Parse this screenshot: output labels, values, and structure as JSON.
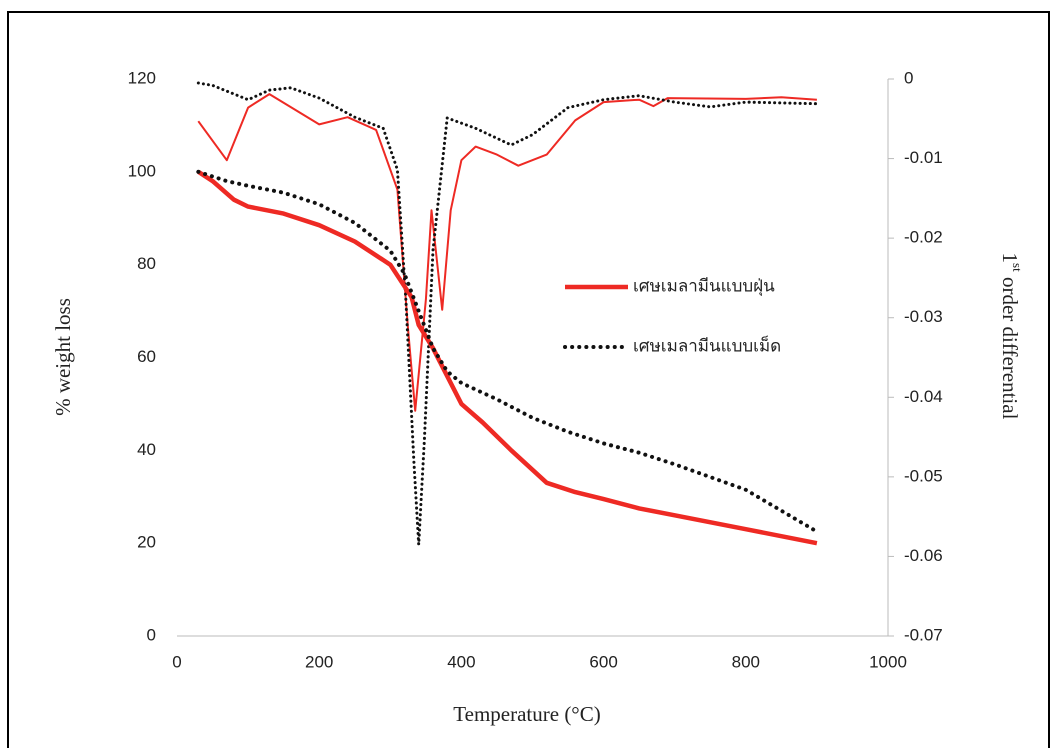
{
  "chart_data": {
    "type": "line",
    "xlabel": "Temperature (°C)",
    "ylabel": "% weight loss",
    "y2label": [
      "1",
      "st",
      " order differential"
    ],
    "xlim": [
      0,
      1000
    ],
    "xticks": [
      0,
      200,
      400,
      600,
      800,
      1000
    ],
    "ylim": [
      0,
      120
    ],
    "yticks": [
      0,
      20,
      40,
      60,
      80,
      100,
      120
    ],
    "y2lim": [
      -0.07,
      0
    ],
    "y2ticks": [
      0,
      -0.01,
      -0.02,
      -0.03,
      -0.04,
      -0.05,
      -0.06,
      -0.07
    ],
    "series": [
      {
        "name": "เศษเมลามีนแบบฝุ่น",
        "color": "#ee2a24",
        "style": "solid",
        "x": [
          30,
          50,
          80,
          100,
          150,
          200,
          250,
          300,
          330,
          340,
          360,
          380,
          400,
          430,
          470,
          520,
          560,
          600,
          650,
          700,
          800,
          900
        ],
        "values": [
          100,
          98,
          94,
          92.5,
          91,
          88.5,
          85,
          80,
          73,
          67,
          62,
          56,
          50,
          46,
          40,
          33,
          31,
          29.5,
          27.5,
          26,
          23,
          20
        ]
      },
      {
        "name": "เศษเมลามีนแบบเม็ด",
        "color": "#111111",
        "style": "dotted",
        "x": [
          30,
          70,
          100,
          150,
          200,
          250,
          300,
          320,
          340,
          360,
          380,
          400,
          450,
          500,
          550,
          600,
          650,
          700,
          800,
          900
        ],
        "values": [
          100,
          98,
          97,
          95.5,
          93,
          89,
          83,
          78,
          70,
          62,
          57,
          54.5,
          51,
          47,
          44,
          41.5,
          39.5,
          37,
          31.5,
          22.5
        ]
      },
      {
        "color": "#ee2a24",
        "style": "thin",
        "axis": "y2",
        "x": [
          30,
          70,
          100,
          130,
          200,
          240,
          280,
          310,
          325,
          335,
          350,
          358,
          373,
          385,
          400,
          420,
          450,
          480,
          520,
          560,
          600,
          650,
          670,
          690,
          800,
          850,
          900
        ],
        "values": [
          -0.0053,
          -0.0102,
          -0.0036,
          -0.0019,
          -0.0057,
          -0.0048,
          -0.0064,
          -0.0139,
          -0.0315,
          -0.0417,
          -0.0277,
          -0.0165,
          -0.029,
          -0.0165,
          -0.0102,
          -0.0085,
          -0.0095,
          -0.0109,
          -0.0095,
          -0.0052,
          -0.0029,
          -0.0026,
          -0.0034,
          -0.0024,
          -0.0025,
          -0.0023,
          -0.0026
        ]
      },
      {
        "color": "#111111",
        "style": "dotted-thin",
        "axis": "y2",
        "x": [
          30,
          50,
          100,
          130,
          160,
          200,
          250,
          290,
          310,
          322,
          333,
          340,
          348,
          360,
          380,
          420,
          470,
          500,
          550,
          600,
          650,
          700,
          750,
          800,
          900
        ],
        "values": [
          -0.0005,
          -0.0008,
          -0.0026,
          -0.0014,
          -0.0011,
          -0.0024,
          -0.0048,
          -0.0062,
          -0.0114,
          -0.0278,
          -0.0479,
          -0.0585,
          -0.0453,
          -0.0215,
          -0.0049,
          -0.0062,
          -0.0083,
          -0.007,
          -0.0036,
          -0.0026,
          -0.0021,
          -0.0029,
          -0.0035,
          -0.0029,
          -0.0031
        ]
      }
    ]
  }
}
